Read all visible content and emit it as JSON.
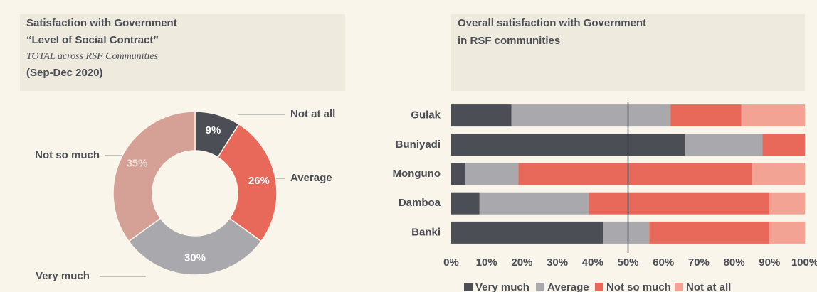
{
  "chart_data": [
    {
      "type": "donut",
      "title": [
        "Satisfaction with Government",
        "“Level of Social Contract”"
      ],
      "subtitle": "TOTAL across RSF Communities",
      "period": "(Sep-Dec 2020)",
      "categories": [
        "Not at all",
        "Average",
        "Very much",
        "Not so much"
      ],
      "values": [
        9,
        26,
        30,
        35
      ],
      "value_labels": [
        "9%",
        "26%",
        "30%",
        "35%"
      ],
      "colors": [
        "#4b4e55",
        "#e8695a",
        "#a9a8ac",
        "#d5a196"
      ]
    },
    {
      "type": "stacked_bar_horizontal",
      "title": [
        "Overall satisfaction with Government",
        "in RSF communities"
      ],
      "categories": [
        "Gulak",
        "Buniyadi",
        "Monguno",
        "Damboa",
        "Banki"
      ],
      "series": [
        {
          "name": "Very much",
          "color": "#4b4e55",
          "values": [
            17,
            66,
            4,
            8,
            43
          ]
        },
        {
          "name": "Average",
          "color": "#a9a8ac",
          "values": [
            45,
            22,
            15,
            31,
            13
          ]
        },
        {
          "name": "Not so much",
          "color": "#e8695a",
          "values": [
            20,
            12,
            66,
            51,
            34
          ]
        },
        {
          "name": "Not at all",
          "color": "#f2a393",
          "values": [
            18,
            0,
            15,
            10,
            10
          ]
        }
      ],
      "xlim": [
        0,
        100
      ],
      "xticks": [
        {
          "value": 0,
          "label": "0%"
        },
        {
          "value": 10,
          "label": "10%"
        },
        {
          "value": 20,
          "label": "20%"
        },
        {
          "value": 30,
          "label": "30%"
        },
        {
          "value": 40,
          "label": "40%"
        },
        {
          "value": 50,
          "label": "50%"
        },
        {
          "value": 60,
          "label": "60%"
        },
        {
          "value": 70,
          "label": "70%"
        },
        {
          "value": 80,
          "label": "80%"
        },
        {
          "value": 90,
          "label": "90%"
        },
        {
          "value": 100,
          "label": "100%"
        }
      ],
      "reference_line": 50,
      "legend": "bottom"
    }
  ]
}
